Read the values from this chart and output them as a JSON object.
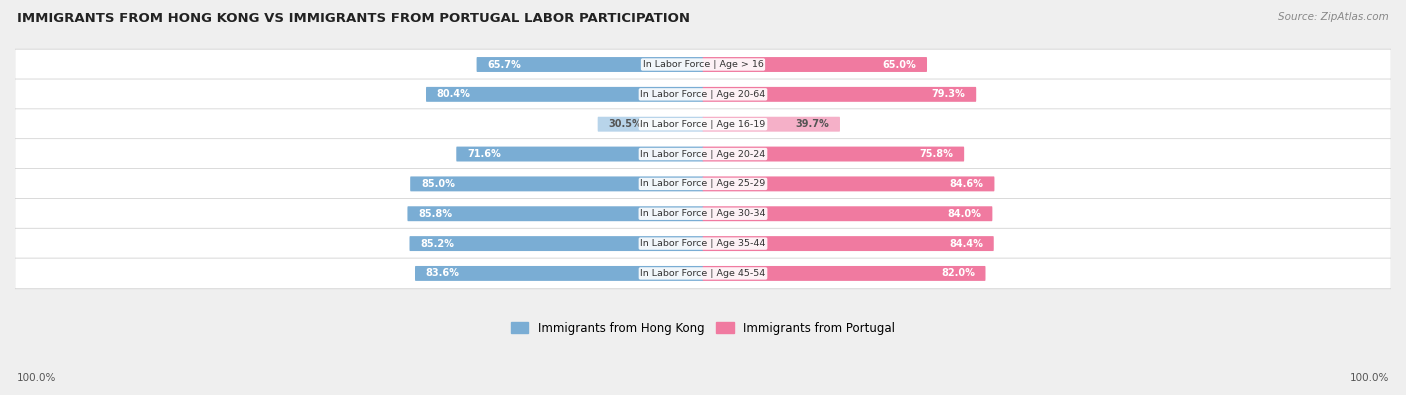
{
  "title": "IMMIGRANTS FROM HONG KONG VS IMMIGRANTS FROM PORTUGAL LABOR PARTICIPATION",
  "source": "Source: ZipAtlas.com",
  "categories": [
    "In Labor Force | Age > 16",
    "In Labor Force | Age 20-64",
    "In Labor Force | Age 16-19",
    "In Labor Force | Age 20-24",
    "In Labor Force | Age 25-29",
    "In Labor Force | Age 30-34",
    "In Labor Force | Age 35-44",
    "In Labor Force | Age 45-54"
  ],
  "hong_kong_values": [
    65.7,
    80.4,
    30.5,
    71.6,
    85.0,
    85.8,
    85.2,
    83.6
  ],
  "portugal_values": [
    65.0,
    79.3,
    39.7,
    75.8,
    84.6,
    84.0,
    84.4,
    82.0
  ],
  "hk_color": "#7aadd4",
  "hk_color_light": "#b8d4ea",
  "pt_color": "#f07aa0",
  "pt_color_light": "#f5b0c8",
  "background_color": "#efefef",
  "row_bg_color": "#ffffff",
  "legend_hk": "Immigrants from Hong Kong",
  "legend_pt": "Immigrants from Portugal",
  "figsize": [
    14.06,
    3.95
  ],
  "dpi": 100
}
